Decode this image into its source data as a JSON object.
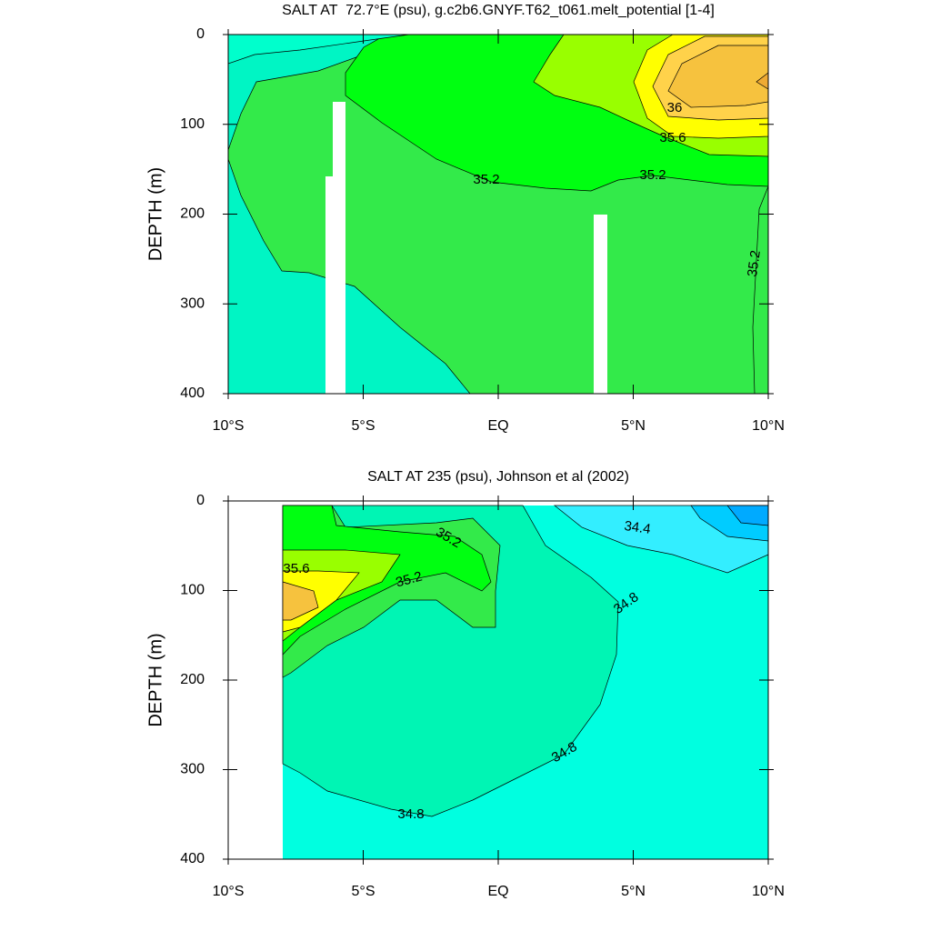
{
  "chart_data": [
    {
      "type": "contour",
      "title": "SALT AT  72.7°E (psu), g.c2b6.GNYF.T62_t061.melt_potential [1-4]",
      "y_label": "DEPTH (m)",
      "xlim": [
        -10,
        10
      ],
      "xticks": [
        {
          "value": -10,
          "label": "10°S"
        },
        {
          "value": -5,
          "label": "5°S"
        },
        {
          "value": 0,
          "label": "EQ"
        },
        {
          "value": 5,
          "label": "5°N"
        },
        {
          "value": 10,
          "label": "10°N"
        }
      ],
      "ylim": [
        0,
        400
      ],
      "y_inverted": true,
      "yticks": [
        0,
        100,
        200,
        300,
        400
      ],
      "contour_labels": [
        36,
        35.6,
        35.2,
        35.2,
        35.2
      ]
    },
    {
      "type": "contour",
      "title": "SALT AT 235 (psu), Johnson et al (2002)",
      "y_label": "DEPTH (m)",
      "xlim": [
        -10,
        10
      ],
      "xticks": [
        {
          "value": -10,
          "label": "10°S"
        },
        {
          "value": -5,
          "label": "5°S"
        },
        {
          "value": 0,
          "label": "EQ"
        },
        {
          "value": 5,
          "label": "5°N"
        },
        {
          "value": 10,
          "label": "10°N"
        }
      ],
      "ylim": [
        0,
        400
      ],
      "y_inverted": true,
      "yticks": [
        0,
        100,
        200,
        300,
        400
      ],
      "contour_labels": [
        34.4,
        35.2,
        35.6,
        35.2,
        34.8,
        34.8,
        34.8
      ]
    }
  ]
}
